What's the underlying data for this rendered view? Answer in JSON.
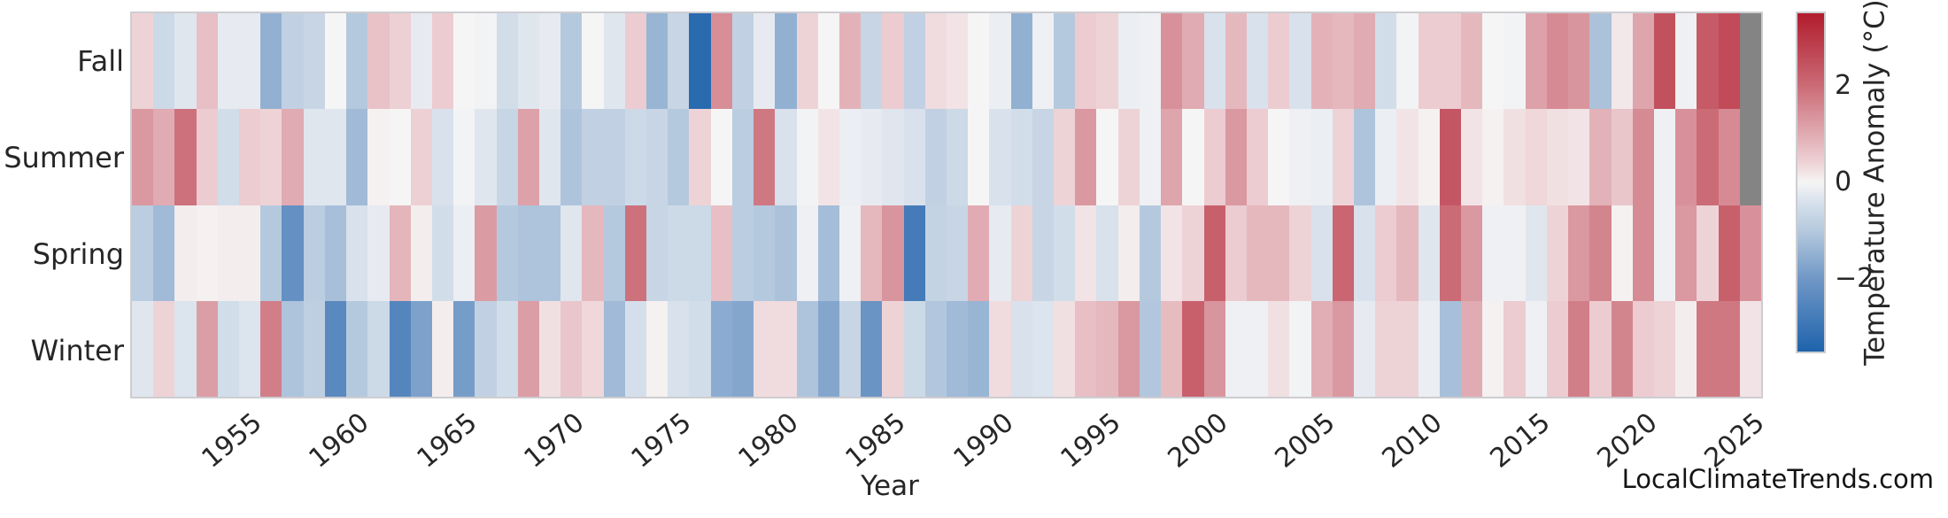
{
  "watermark": "LocalClimateTrends.com",
  "chart_data": {
    "type": "heatmap",
    "xlabel": "Year",
    "x_start_year": 1950,
    "x_end_year": 2025,
    "x_tick_labels": [
      "1955",
      "1960",
      "1965",
      "1970",
      "1975",
      "1980",
      "1985",
      "1990",
      "1995",
      "2000",
      "2005",
      "2010",
      "2015",
      "2020",
      "2025"
    ],
    "x_tick_years": [
      1955,
      1960,
      1965,
      1970,
      1975,
      1980,
      1985,
      1990,
      1995,
      2000,
      2005,
      2010,
      2015,
      2020,
      2025
    ],
    "row_labels": [
      "Fall",
      "Summer",
      "Spring",
      "Winter"
    ],
    "series": [
      {
        "name": "Fall",
        "values": [
          0.4,
          -0.6,
          -0.3,
          0.7,
          -0.2,
          -0.2,
          -1.5,
          -0.8,
          -0.7,
          0,
          -1,
          0.65,
          0.45,
          -0.2,
          0.5,
          0,
          -0.05,
          -0.5,
          -0.3,
          -0.2,
          -1,
          0,
          -0.3,
          0.5,
          -1.4,
          -0.7,
          -3.3,
          1.45,
          -0.8,
          -0.2,
          -1.5,
          0.4,
          0,
          0.9,
          -0.7,
          0.5,
          -0.8,
          0.3,
          0.2,
          0,
          -0.15,
          -1.5,
          -0.1,
          -1,
          0.5,
          0.4,
          -0.15,
          -0.1,
          1.4,
          1,
          -0.4,
          0.8,
          -0.4,
          0.5,
          -0.4,
          0.9,
          0.8,
          1,
          -0.5,
          -0.05,
          0.5,
          0.5,
          0.8,
          0,
          -0.05,
          1.15,
          1.5,
          1.35,
          -1.15,
          0.15,
          1.1,
          2.5,
          -0.1,
          2.3,
          2.6,
          null
        ]
      },
      {
        "name": "Summer",
        "values": [
          1.3,
          1,
          1.9,
          0.5,
          -0.5,
          0.5,
          0.4,
          1,
          -0.3,
          -0.3,
          -1.3,
          0.05,
          0,
          0.45,
          -0.4,
          -0.05,
          -0.3,
          -0.7,
          1.15,
          -0.3,
          -1.1,
          -0.8,
          -0.8,
          -0.6,
          -0.7,
          -1,
          0.4,
          0,
          -0.9,
          1.8,
          -0.4,
          -0.05,
          0.2,
          -0.15,
          -0.2,
          -0.3,
          -0.4,
          -0.8,
          -0.6,
          0,
          -0.4,
          -0.5,
          -0.7,
          0.4,
          1.3,
          0,
          0.4,
          -0.1,
          1.1,
          0,
          0.5,
          1.3,
          0.5,
          0,
          -0.1,
          -0.15,
          0.4,
          -1.1,
          -0.15,
          0.2,
          0.05,
          2.4,
          0.2,
          0.05,
          0.25,
          0.35,
          0.25,
          0.2,
          0.9,
          0.6,
          1.5,
          -0.1,
          1.4,
          2,
          1.5,
          null
        ]
      },
      {
        "name": "Spring",
        "values": [
          -0.9,
          -1.3,
          0.1,
          0.05,
          0.1,
          0.1,
          -1,
          -2.2,
          -0.9,
          -1.2,
          -0.4,
          -0.2,
          0.85,
          0.1,
          -0.5,
          -0.15,
          1.25,
          -1,
          -1.1,
          -1.1,
          -0.3,
          0.8,
          -1,
          1.9,
          -0.7,
          -0.6,
          -0.6,
          0.7,
          -0.9,
          -1,
          -1.15,
          -0.1,
          -1.25,
          -0.1,
          0.8,
          1.35,
          -2.8,
          -0.75,
          -0.7,
          1,
          -0.2,
          0.4,
          -0.7,
          -0.5,
          0.2,
          -0.4,
          0.1,
          -1,
          0.2,
          0.4,
          2.2,
          0.5,
          0.8,
          0.8,
          0.4,
          -0.4,
          2.1,
          -0.4,
          0.5,
          0.8,
          -0.3,
          2,
          1.3,
          -0.1,
          -0.1,
          -0.3,
          0.4,
          1.3,
          1.6,
          0.05,
          1.5,
          -0.1,
          1.3,
          0.4,
          2.2,
          1.4
        ]
      },
      {
        "name": "Winter",
        "values": [
          -0.3,
          0.4,
          -0.35,
          1.2,
          -0.5,
          -0.35,
          1.7,
          -1.1,
          -0.85,
          -2.4,
          -1,
          -0.6,
          -2.5,
          -1.8,
          0.1,
          -1.9,
          -0.8,
          -0.5,
          1.2,
          0.25,
          0.6,
          0.35,
          -1.3,
          -0.45,
          0.05,
          -0.4,
          -0.5,
          -1.6,
          -1.7,
          0.3,
          0.3,
          -1.1,
          -1.7,
          -0.7,
          -2.1,
          0.4,
          -0.6,
          -1.05,
          -1.3,
          -1.4,
          0.3,
          -0.4,
          -0.35,
          0.25,
          0.7,
          0.8,
          1.3,
          -1.05,
          0.75,
          2.2,
          1.35,
          -0.1,
          -0.1,
          0.25,
          -0.05,
          0.95,
          1.3,
          -0.2,
          0.4,
          0.4,
          -0.15,
          -1.2,
          1,
          0.05,
          0.5,
          -0.1,
          0.5,
          1.7,
          0.5,
          1.6,
          0.5,
          0.4,
          0.1,
          1.8,
          1.8,
          0.2
        ]
      }
    ],
    "missing_cells_note": "Fall 2025 and Summer 2025 have no data (gray)",
    "colorbar": {
      "label": "Temperature Anomaly (°C)",
      "ticks": [
        {
          "label": "2",
          "value": 2
        },
        {
          "label": "0",
          "value": 0
        },
        {
          "label": "−2",
          "value": -2
        }
      ],
      "vmin": -3.5,
      "vmax": 3.5
    },
    "colors": {
      "nan_color": "#848484",
      "frame_border": "#cdcdd1",
      "text": "#262626",
      "colormap_stops": [
        {
          "v": -3.5,
          "c": "#1f63ac"
        },
        {
          "v": -2.0,
          "c": "#6f97c6"
        },
        {
          "v": -1.0,
          "c": "#b5c9de"
        },
        {
          "v": -0.4,
          "c": "#d8e1ec"
        },
        {
          "v": 0.0,
          "c": "#f6f5f5"
        },
        {
          "v": 0.4,
          "c": "#eed3d6"
        },
        {
          "v": 1.0,
          "c": "#e0abb2"
        },
        {
          "v": 2.0,
          "c": "#cb6b76"
        },
        {
          "v": 3.5,
          "c": "#b11c2d"
        }
      ]
    },
    "legend_position": "right",
    "grid": false
  }
}
